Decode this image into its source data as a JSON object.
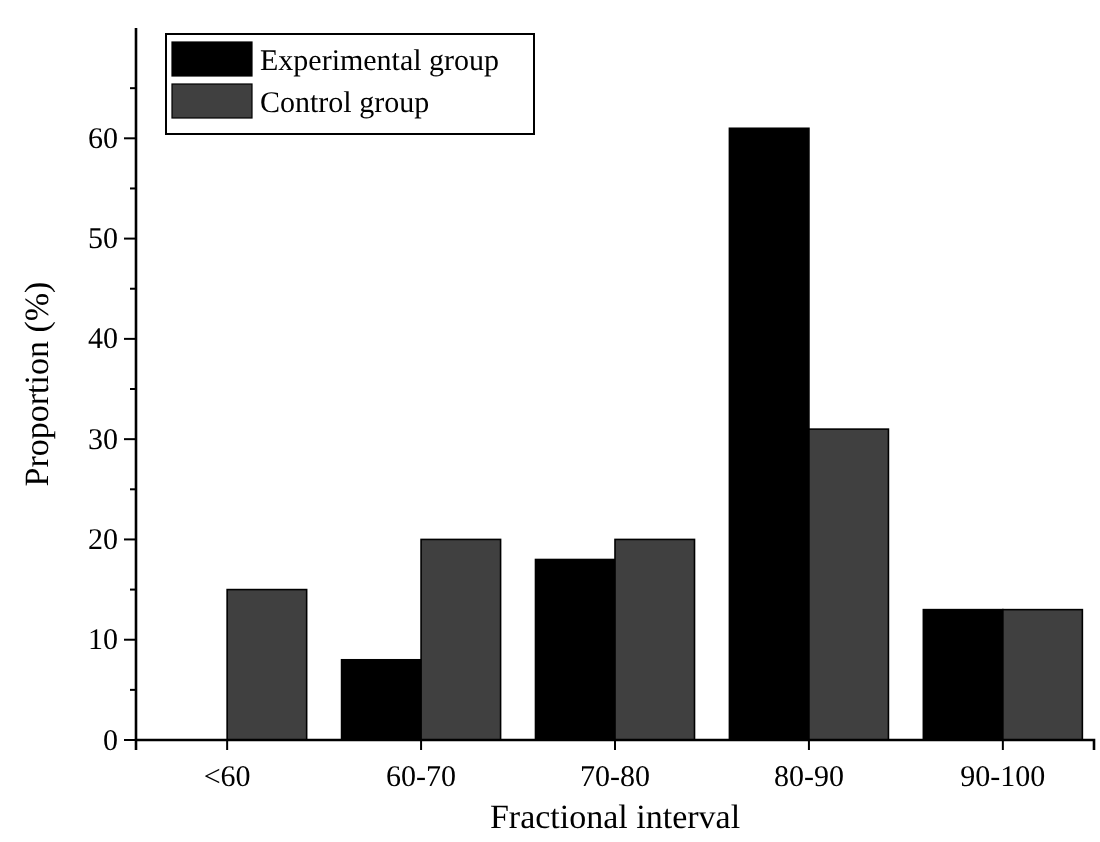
{
  "chart_data": {
    "type": "bar",
    "xlabel": "Fractional interval",
    "ylabel": "Proportion (%)",
    "categories": [
      "<60",
      "60-70",
      "70-80",
      "80-90",
      "90-100"
    ],
    "series": [
      {
        "name": "Experimental group",
        "color": "#000000",
        "values": [
          0,
          8,
          18,
          61,
          13
        ]
      },
      {
        "name": "Control group",
        "color": "#404040",
        "values": [
          15,
          20,
          20,
          31,
          13
        ]
      }
    ],
    "ylim": [
      0,
      71
    ],
    "yticks": [
      0,
      {
        "value": 5,
        "label": null
      },
      10,
      {
        "value": 15,
        "label": null
      },
      20,
      {
        "value": 25,
        "label": null
      },
      30,
      {
        "value": 35,
        "label": null
      },
      40,
      {
        "value": 45,
        "label": null
      },
      50,
      {
        "value": 55,
        "label": null
      },
      60,
      {
        "value": 65,
        "label": null
      }
    ],
    "legend": "top left",
    "grid": false
  }
}
